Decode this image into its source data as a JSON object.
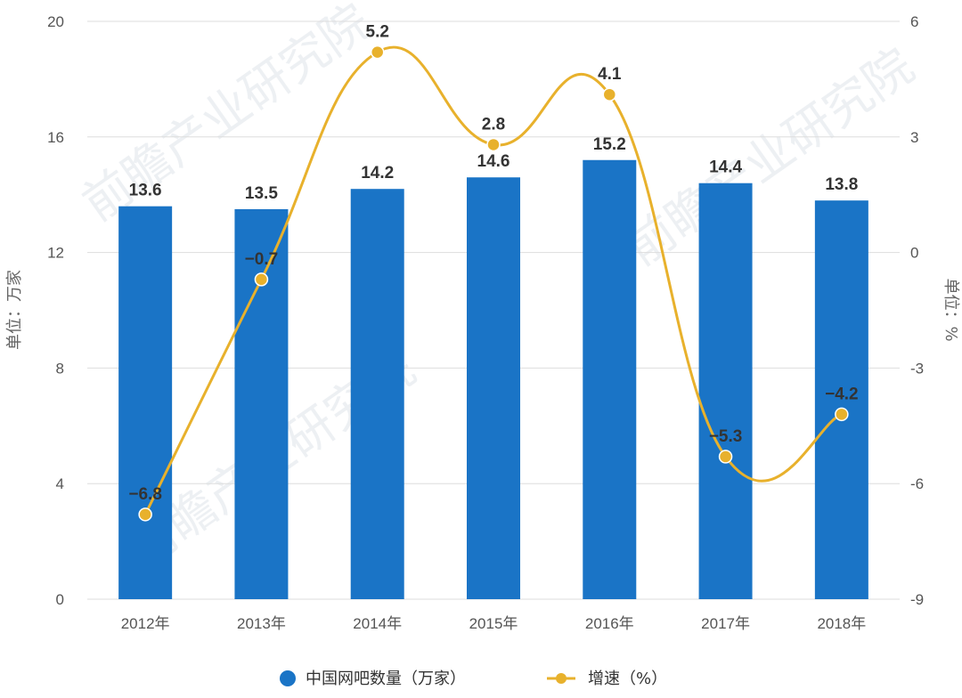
{
  "chart_data": {
    "type": "bar",
    "title": "",
    "categories": [
      "2012年",
      "2013年",
      "2014年",
      "2015年",
      "2016年",
      "2017年",
      "2018年"
    ],
    "series": [
      {
        "name": "中国网吧数量（万家）",
        "type": "bar",
        "axis": "left",
        "color": "#1a74c6",
        "values": [
          13.6,
          13.5,
          14.2,
          14.6,
          15.2,
          14.4,
          13.8
        ],
        "labels": [
          "13.6",
          "13.5",
          "14.2",
          "14.6",
          "15.2",
          "14.4",
          "13.8"
        ]
      },
      {
        "name": "增速（%）",
        "type": "line",
        "axis": "right",
        "color": "#e8b12c",
        "values": [
          -6.8,
          -0.7,
          5.2,
          2.8,
          4.1,
          -5.3,
          -4.2
        ],
        "labels": [
          "−6.8",
          "−0.7",
          "5.2",
          "2.8",
          "4.1",
          "−5.3",
          "−4.2"
        ]
      }
    ],
    "ylabel": "单位：万家",
    "y2label": "单位：%",
    "ylim": [
      0,
      20
    ],
    "y2lim": [
      -9,
      6
    ],
    "yticks": [
      "0",
      "4",
      "8",
      "12",
      "16",
      "20"
    ],
    "y2ticks": [
      "-9",
      "-6",
      "-3",
      "0",
      "3",
      "6"
    ],
    "grid": true,
    "legend": "bottom-center"
  },
  "watermark": {
    "text": "前瞻产业研究院"
  }
}
